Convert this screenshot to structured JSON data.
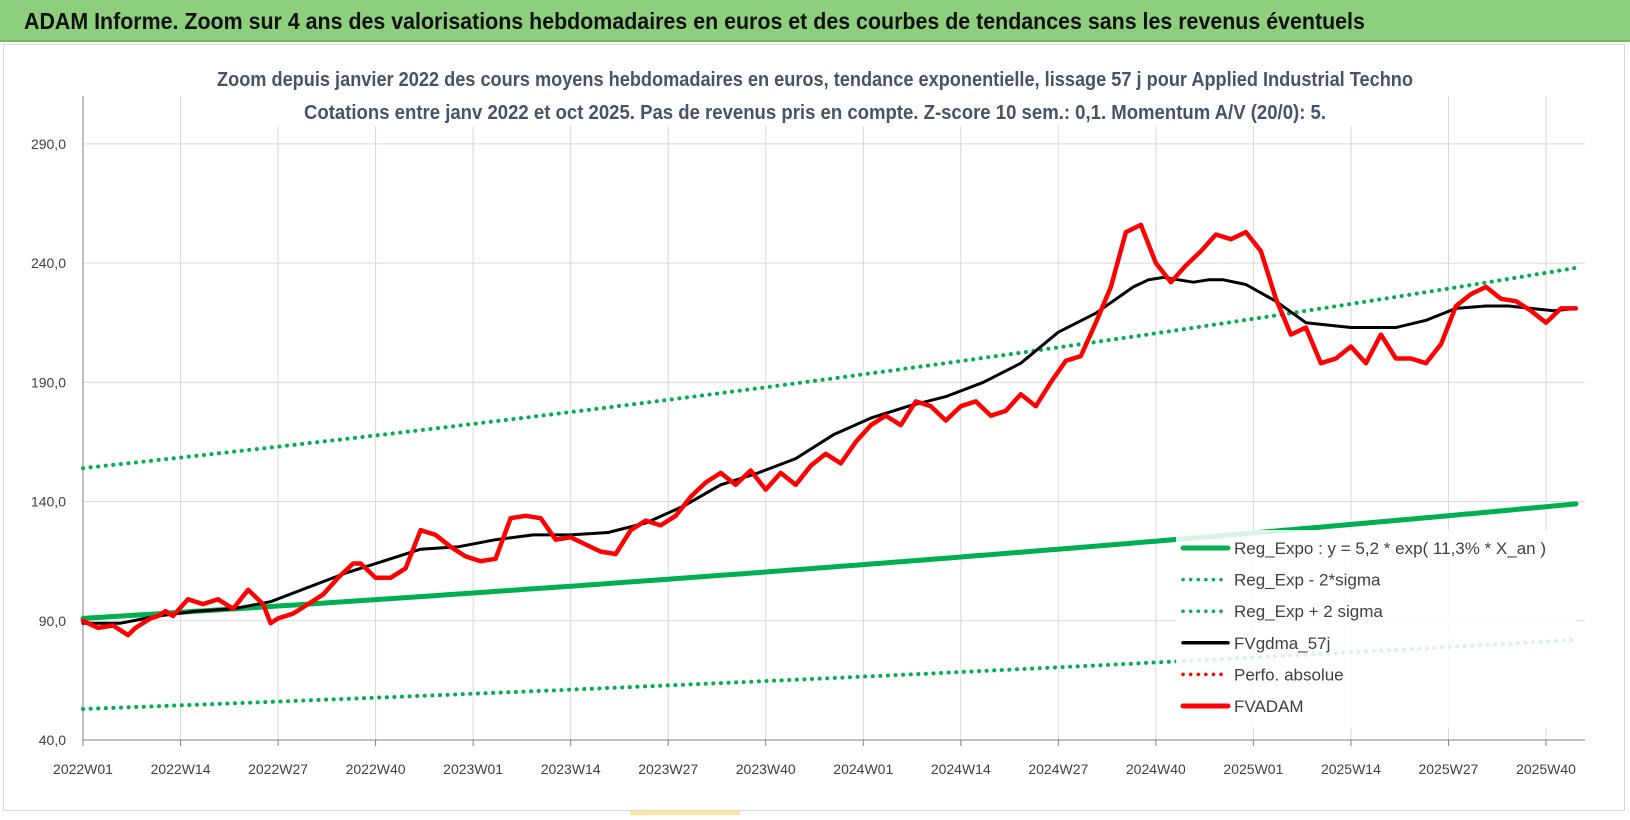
{
  "banner": {
    "title": "ADAM Informe. Zoom sur 4 ans des valorisations hebdomadaires en euros et des courbes de tendances sans les revenus éventuels"
  },
  "chart_data": {
    "type": "line",
    "title": "Zoom depuis janvier 2022 des cours moyens hebdomadaires en euros, tendance exponentielle, lissage 57 j pour Applied Industrial Techno",
    "subtitle": "Cotations entre janv 2022 et oct 2025. Pas de revenus pris en compte. Z-score 10 sem.: 0,1. Momentum A/V (20/0): 5.",
    "xlabel": "",
    "ylabel": "",
    "ylim": [
      40,
      300
    ],
    "y_ticks": [
      40,
      90,
      140,
      190,
      240,
      290
    ],
    "y_tick_labels": [
      "40,0",
      "90,0",
      "140,0",
      "190,0",
      "240,0",
      "290,0"
    ],
    "x_start_week": 1,
    "x_end_week": 196,
    "x_ticks": [
      1,
      14,
      27,
      40,
      53,
      66,
      79,
      92,
      105,
      118,
      131,
      144,
      157,
      170,
      183,
      196
    ],
    "x_tick_labels": [
      "2022W01",
      "2022W14",
      "2022W27",
      "2022W40",
      "2023W01",
      "2023W14",
      "2023W27",
      "2023W40",
      "2024W01",
      "2024W14",
      "2024W27",
      "2024W40",
      "2025W01",
      "2025W14",
      "2025W27",
      "2025W40"
    ],
    "grid": true,
    "legend_position": "bottom-right",
    "series": [
      {
        "name": "Reg_Expo : y = 5,2 * exp( 11,3% * X_an )",
        "style": "solid-thick",
        "color": "#00b050",
        "x": [
          1,
          200
        ],
        "y": [
          91,
          139
        ],
        "curve": "exponential"
      },
      {
        "name": "Reg_Exp - 2*sigma",
        "style": "dotted",
        "color": "#00b050",
        "x": [
          1,
          200
        ],
        "y": [
          53,
          82
        ],
        "curve": "exponential"
      },
      {
        "name": "Reg_Exp + 2 sigma",
        "style": "dotted",
        "color": "#00b050",
        "x": [
          1,
          200
        ],
        "y": [
          154,
          238
        ],
        "curve": "exponential"
      },
      {
        "name": "FVgdma_57j",
        "style": "solid",
        "color": "#000000",
        "x": [
          1,
          6,
          11,
          16,
          21,
          26,
          31,
          36,
          41,
          46,
          51,
          56,
          61,
          66,
          71,
          76,
          81,
          86,
          91,
          96,
          101,
          106,
          111,
          116,
          121,
          126,
          131,
          136,
          141,
          143,
          145,
          147,
          149,
          151,
          153,
          156,
          160,
          164,
          167,
          170,
          173,
          176,
          180,
          184,
          188,
          191,
          194,
          197,
          200
        ],
        "y": [
          89,
          89,
          92,
          94,
          95,
          98,
          104,
          110,
          115,
          120,
          121,
          124,
          126,
          126,
          127,
          131,
          138,
          147,
          152,
          158,
          168,
          175,
          180,
          184,
          190,
          198,
          211,
          219,
          230,
          233,
          234,
          233,
          232,
          233,
          233,
          231,
          224,
          215,
          214,
          213,
          213,
          213,
          216,
          221,
          222,
          222,
          221,
          220,
          221
        ]
      },
      {
        "name": "Perfo. absolue",
        "style": "dotted",
        "color": "#ff0000",
        "x": [],
        "y": []
      },
      {
        "name": "FVADAM",
        "style": "solid-thick",
        "color": "#ff0000",
        "x": [
          1,
          3,
          5,
          7,
          8,
          10,
          11,
          12,
          13,
          15,
          17,
          19,
          21,
          23,
          25,
          26,
          27,
          29,
          31,
          33,
          35,
          37,
          38,
          40,
          42,
          44,
          46,
          48,
          50,
          52,
          54,
          56,
          58,
          60,
          62,
          64,
          66,
          68,
          70,
          72,
          74,
          76,
          78,
          80,
          82,
          84,
          86,
          88,
          90,
          92,
          94,
          96,
          98,
          100,
          102,
          104,
          106,
          108,
          110,
          112,
          114,
          116,
          118,
          120,
          122,
          124,
          126,
          128,
          130,
          132,
          134,
          136,
          138,
          140,
          142,
          144,
          146,
          148,
          150,
          152,
          154,
          156,
          158,
          160,
          162,
          164,
          166,
          168,
          170,
          172,
          174,
          176,
          178,
          180,
          182,
          184,
          186,
          188,
          190,
          192,
          194,
          196,
          198,
          200
        ],
        "y": [
          90,
          87,
          88,
          84,
          87,
          91,
          92,
          94,
          92,
          99,
          97,
          99,
          95,
          103,
          97,
          89,
          91,
          93,
          97,
          101,
          108,
          114,
          114,
          108,
          108,
          112,
          128,
          126,
          121,
          117,
          115,
          116,
          133,
          134,
          133,
          124,
          125,
          122,
          119,
          118,
          128,
          132,
          130,
          134,
          142,
          148,
          152,
          147,
          153,
          145,
          152,
          147,
          155,
          160,
          156,
          165,
          172,
          176,
          172,
          182,
          180,
          174,
          180,
          182,
          176,
          178,
          185,
          180,
          190,
          199,
          201,
          215,
          230,
          253,
          256,
          240,
          232,
          239,
          245,
          252,
          250,
          253,
          245,
          225,
          210,
          213,
          198,
          200,
          205,
          198,
          210,
          200,
          200,
          198,
          206,
          222,
          227,
          230,
          225,
          224,
          220,
          215,
          221,
          221
        ]
      }
    ]
  }
}
